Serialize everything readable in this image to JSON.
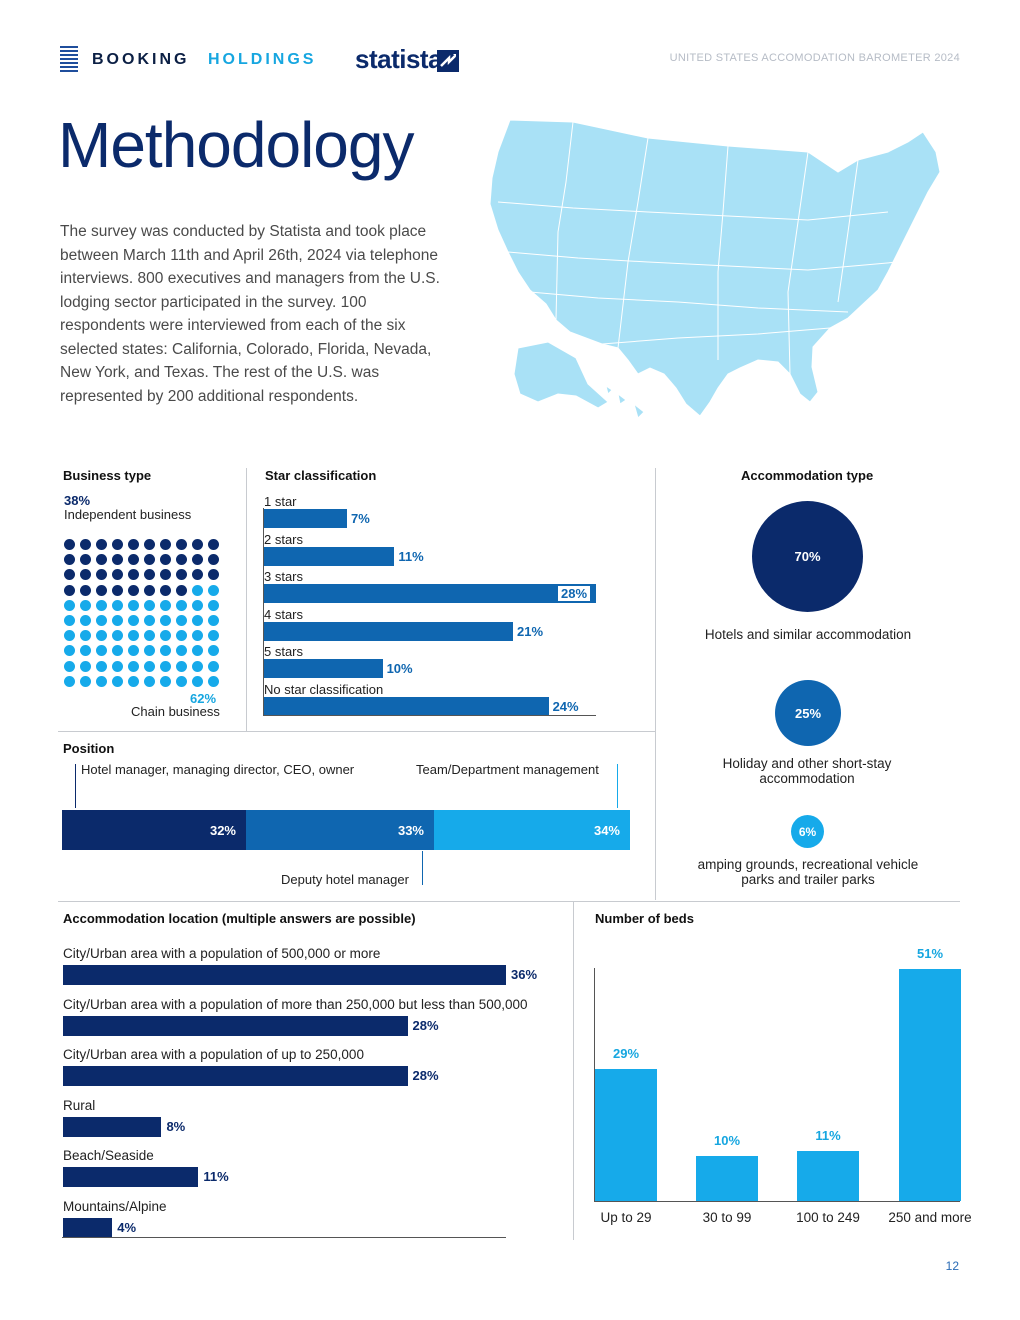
{
  "header": {
    "brand_booking": "BOOKING",
    "brand_holdings": "HOLDINGS",
    "brand_statista": "statista",
    "report_title": "UNITED STATES ACCOMODATION BAROMETER 2024"
  },
  "page_title": "Methodology",
  "intro_text": "The survey was conducted by Statista and took place between March 11th and April 26th, 2024 via telephone interviews. 800 executives and managers from the U.S. lodging sector participated in the survey. 100 respondents were interviewed from each of the six selected states: California, Colorado, Florida, Nevada, New York, and Texas. The rest of the U.S. was represented by 200 additional respondents.",
  "colors": {
    "navy": "#0b2a6b",
    "mid_blue": "#0f66b0",
    "light_blue": "#16aaea",
    "map_fill": "#a9e1f6"
  },
  "business_type": {
    "title": "Business type",
    "independent_pct": "38%",
    "independent_label": "Independent business",
    "chain_pct": "62%",
    "chain_label": "Chain business",
    "independent_count": 38,
    "total_dots": 100
  },
  "star_classification": {
    "title": "Star classification",
    "items": [
      {
        "label": "1 star",
        "value": 7,
        "display": "7%"
      },
      {
        "label": "2 stars",
        "value": 11,
        "display": "11%"
      },
      {
        "label": "3 stars",
        "value": 28,
        "display": "28%"
      },
      {
        "label": "4 stars",
        "value": 21,
        "display": "21%"
      },
      {
        "label": "5 stars",
        "value": 10,
        "display": "10%"
      },
      {
        "label": "No star classification",
        "value": 24,
        "display": "24%"
      }
    ]
  },
  "accommodation_type": {
    "title": "Accommodation type",
    "items": [
      {
        "value": 70,
        "display": "70%",
        "label": "Hotels and similar accommodation"
      },
      {
        "value": 25,
        "display": "25%",
        "label": "Holiday and other short-stay accommodation"
      },
      {
        "value": 6,
        "display": "6%",
        "label": "amping grounds, recreational vehicle parks and trailer parks"
      }
    ]
  },
  "position": {
    "title": "Position",
    "label_left": "Hotel manager, managing director, CEO, owner",
    "label_right": "Team/Department management",
    "label_bottom": "Deputy hotel manager",
    "segments": [
      {
        "value": 32,
        "display": "32%"
      },
      {
        "value": 33,
        "display": "33%"
      },
      {
        "value": 34,
        "display": "34%"
      }
    ]
  },
  "accommodation_location": {
    "title": "Accommodation location (multiple answers are possible)",
    "items": [
      {
        "label": "City/Urban area with a population of 500,000 or more",
        "value": 36,
        "display": "36%"
      },
      {
        "label": "City/Urban area with a population of more than 250,000 but less than 500,000",
        "value": 28,
        "display": "28%"
      },
      {
        "label": "City/Urban area with a population of up to 250,000",
        "value": 28,
        "display": "28%"
      },
      {
        "label": "Rural",
        "value": 8,
        "display": "8%"
      },
      {
        "label": "Beach/Seaside",
        "value": 11,
        "display": "11%"
      },
      {
        "label": "Mountains/Alpine",
        "value": 4,
        "display": "4%"
      }
    ]
  },
  "chart_data": {
    "type": "bar",
    "title": "Number of beds",
    "categories": [
      "Up to 29",
      "30 to 99",
      "100 to 249",
      "250 and more"
    ],
    "values": [
      29,
      10,
      11,
      51
    ],
    "displays": [
      "29%",
      "10%",
      "11%",
      "51%"
    ],
    "ylim": [
      0,
      51
    ],
    "xlabel": "",
    "ylabel": ""
  },
  "page_number": "12"
}
